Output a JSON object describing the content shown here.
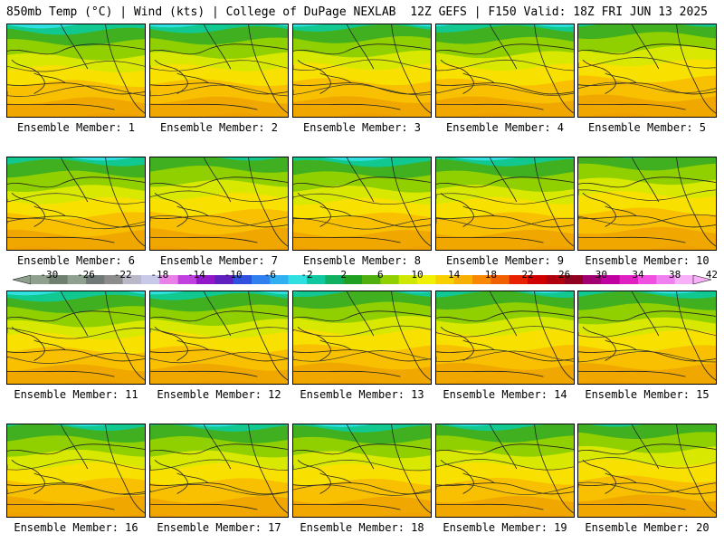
{
  "header": {
    "title_left": "850mb Temp (°C) | Wind (kts) | College of DuPage NEXLAB",
    "title_right": "12Z GEFS | F150 Valid: 18Z FRI JUN 13 2025"
  },
  "panels": [
    {
      "label": "Ensemble Member: 1",
      "cool": 0.35
    },
    {
      "label": "Ensemble Member: 2",
      "cool": 0.45
    },
    {
      "label": "Ensemble Member: 3",
      "cool": 0.55
    },
    {
      "label": "Ensemble Member: 4",
      "cool": 0.5
    },
    {
      "label": "Ensemble Member: 5",
      "cool": 0.85
    },
    {
      "label": "Ensemble Member: 6",
      "cool": 0.45
    },
    {
      "label": "Ensemble Member: 7",
      "cool": 0.8
    },
    {
      "label": "Ensemble Member: 8",
      "cool": 0.4
    },
    {
      "label": "Ensemble Member: 9",
      "cool": 0.45
    },
    {
      "label": "Ensemble Member: 10",
      "cool": 0.95
    },
    {
      "label": "Ensemble Member: 11",
      "cool": 0.35
    },
    {
      "label": "Ensemble Member: 12",
      "cool": 0.45
    },
    {
      "label": "Ensemble Member: 13",
      "cool": 0.65
    },
    {
      "label": "Ensemble Member: 14",
      "cool": 0.6
    },
    {
      "label": "Ensemble Member: 15",
      "cool": 0.55
    },
    {
      "label": "Ensemble Member: 16",
      "cool": 0.6
    },
    {
      "label": "Ensemble Member: 17",
      "cool": 0.55
    },
    {
      "label": "Ensemble Member: 18",
      "cool": 0.5
    },
    {
      "label": "Ensemble Member: 19",
      "cool": 0.6
    },
    {
      "label": "Ensemble Member: 20",
      "cool": 0.85
    }
  ],
  "colorbar": {
    "tick_labels": [
      "-30",
      "-26",
      "-22",
      "-18",
      "-14",
      "-10",
      "-6",
      "-2",
      "2",
      "6",
      "10",
      "14",
      "18",
      "22",
      "26",
      "30",
      "34",
      "38",
      "42"
    ],
    "colors": [
      "#8fa08f",
      "#708070",
      "#90a090",
      "#707878",
      "#8c8c8c",
      "#b8b8c8",
      "#c8c8e8",
      "#e880e8",
      "#c040e0",
      "#9018c8",
      "#6020c0",
      "#3050e0",
      "#3080f0",
      "#30b0f0",
      "#30e0e0",
      "#10c8a0",
      "#10b060",
      "#20a020",
      "#50b010",
      "#90d000",
      "#d0e800",
      "#f0f000",
      "#f8d000",
      "#f8b000",
      "#f88800",
      "#f06000",
      "#e82000",
      "#d00000",
      "#b00010",
      "#900020",
      "#a00070",
      "#c000a0",
      "#e020c0",
      "#f050e0",
      "#f080f0",
      "#f8b0f8"
    ]
  }
}
